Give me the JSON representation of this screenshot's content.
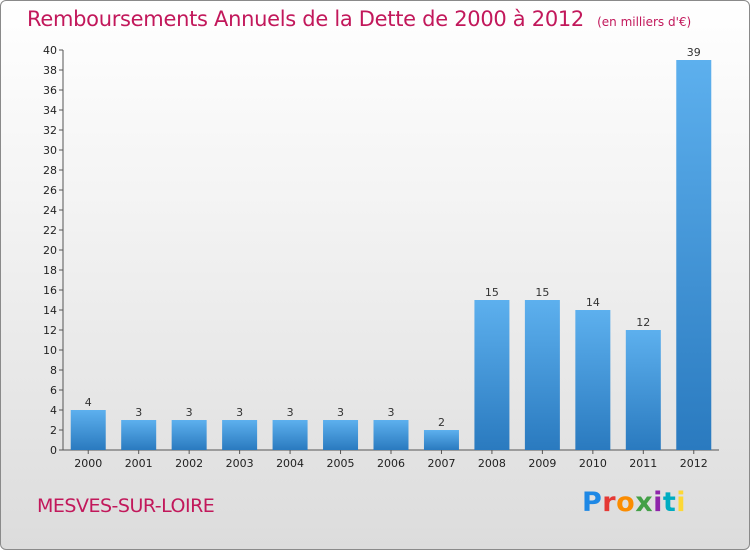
{
  "chart_data": {
    "type": "bar",
    "title": "Remboursements Annuels de la Dette de 2000 à 2012",
    "subtitle": "(en milliers d'€)",
    "categories": [
      "2000",
      "2001",
      "2002",
      "2003",
      "2004",
      "2005",
      "2006",
      "2007",
      "2008",
      "2009",
      "2010",
      "2011",
      "2012"
    ],
    "values": [
      4,
      3,
      3,
      3,
      3,
      3,
      3,
      2,
      15,
      15,
      14,
      12,
      39
    ],
    "ylim": [
      0,
      40
    ],
    "yticks": [
      0,
      2,
      4,
      6,
      8,
      10,
      12,
      14,
      16,
      18,
      20,
      22,
      24,
      26,
      28,
      30,
      32,
      34,
      36,
      38,
      40
    ],
    "grid": false,
    "bar_color": "#3d8fd6"
  },
  "footer": {
    "place": "MESVES-SUR-LOIRE",
    "brand": "Proxiti",
    "brand_colors": [
      "#1e88e5",
      "#e53935",
      "#fb8c00",
      "#43a047",
      "#8e24aa",
      "#00acc1",
      "#fdd835"
    ]
  }
}
